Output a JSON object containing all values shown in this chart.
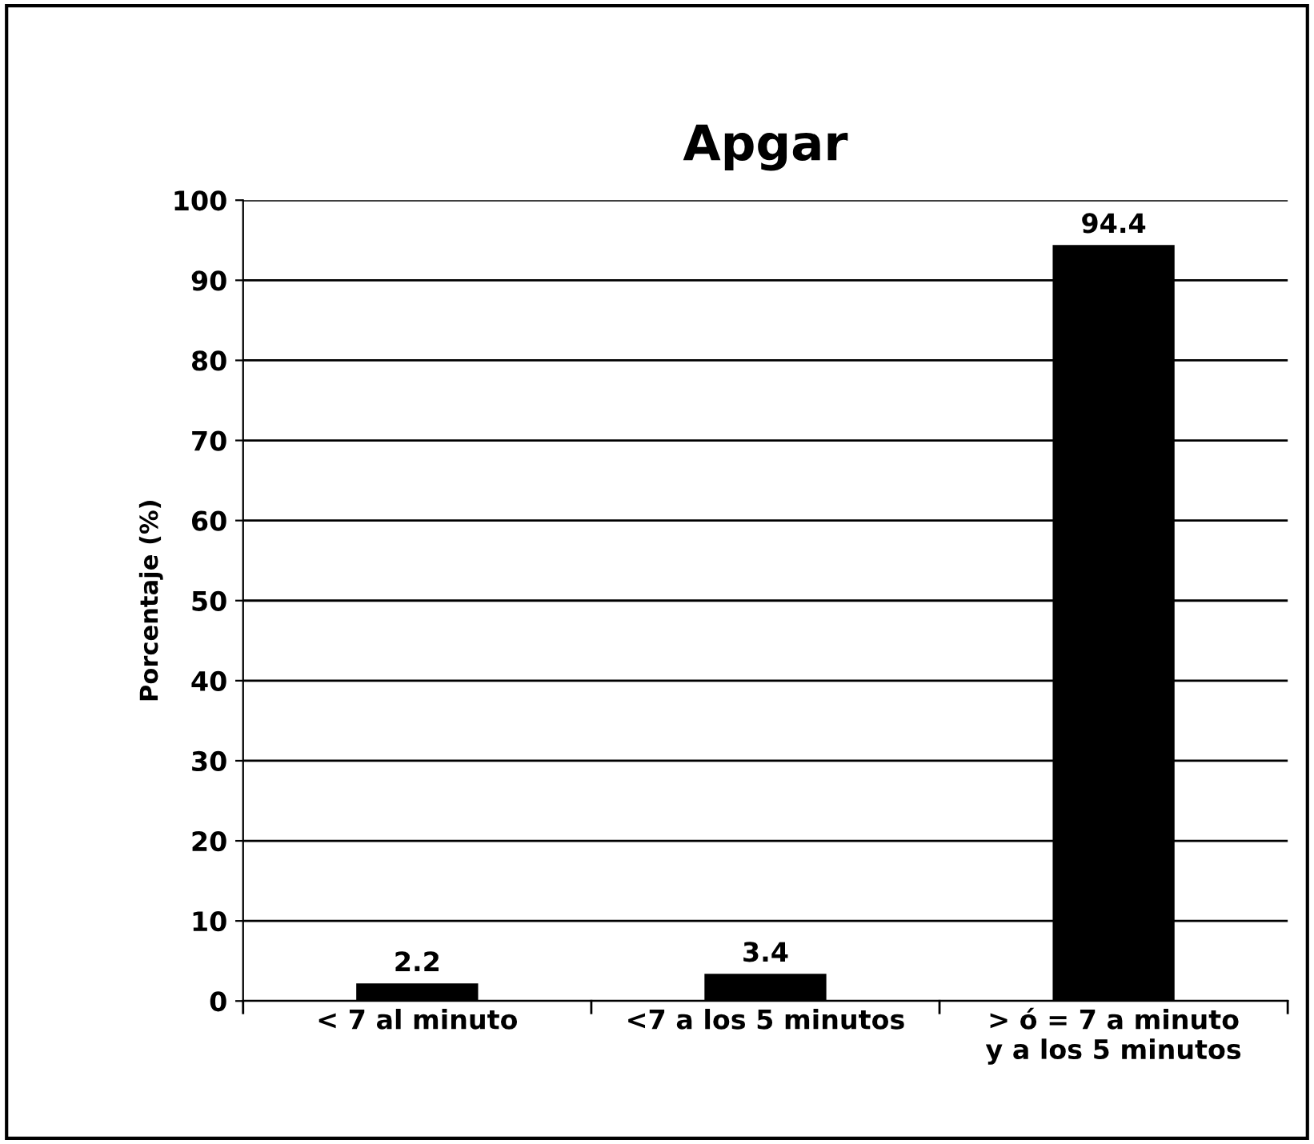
{
  "chart_data": {
    "type": "bar",
    "title": "Apgar",
    "ylabel": "Porcentaje (%)",
    "categories": [
      "< 7 al minuto",
      "<7 a los 5 minutos",
      "> ó = 7 a minuto y a los 5 minutos"
    ],
    "values": [
      2.2,
      3.4,
      94.4
    ],
    "color": "#000000",
    "ylim": [
      0,
      100
    ],
    "yticks": [
      0,
      10,
      20,
      30,
      40,
      50,
      60,
      70,
      80,
      90,
      100
    ],
    "grid": "y",
    "data_labels": true,
    "legend": false
  }
}
